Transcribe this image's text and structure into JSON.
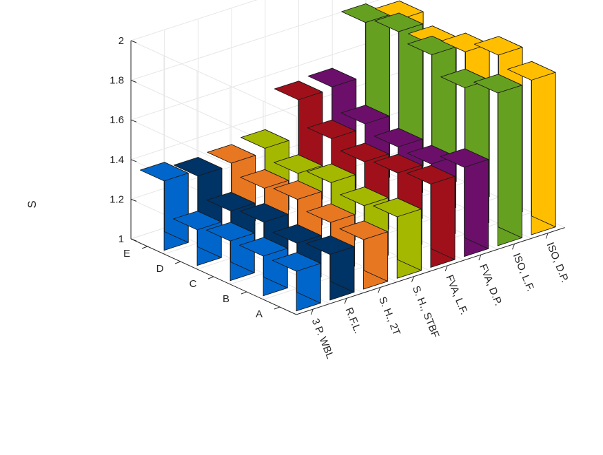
{
  "chart_data": {
    "type": "bar3d",
    "title": "",
    "xlabel": "",
    "ylabel": "",
    "zlabel": "S",
    "zlim": [
      1,
      2
    ],
    "zticks": [
      "1",
      "1.2",
      "1.4",
      "1.6",
      "1.8",
      "2"
    ],
    "rows": [
      "A",
      "B",
      "C",
      "D",
      "E"
    ],
    "columns": [
      "3 P. WBL",
      "R.F.L.",
      "S. H., 2T",
      "S. H., STBF",
      "FVA, L.F.",
      "FVA, D.P.",
      "ISO, L.F.",
      "ISO, D.P."
    ],
    "grid": true,
    "series": [
      {
        "values": [
          1.2,
          1.2,
          1.2,
          1.18,
          1.35
        ],
        "color": "#0066CC"
      },
      {
        "values": [
          1.23,
          1.21,
          1.24,
          1.22,
          1.32
        ],
        "color": "#003366"
      },
      {
        "values": [
          1.25,
          1.26,
          1.3,
          1.28,
          1.33
        ],
        "color": "#E87722"
      },
      {
        "values": [
          1.31,
          1.29,
          1.33,
          1.3,
          1.35
        ],
        "color": "#A5B800"
      },
      {
        "values": [
          1.42,
          1.4,
          1.38,
          1.42,
          1.54
        ],
        "color": "#A0101A"
      },
      {
        "values": [
          1.45,
          1.39,
          1.4,
          1.44,
          1.55
        ],
        "color": "#6B0F6B"
      },
      {
        "values": [
          1.77,
          1.72,
          1.81,
          1.85,
          1.82
        ],
        "color": "#66A020"
      },
      {
        "values": [
          1.78,
          1.83,
          1.77,
          1.73,
          1.78
        ],
        "color": "#FFBF00"
      }
    ]
  }
}
